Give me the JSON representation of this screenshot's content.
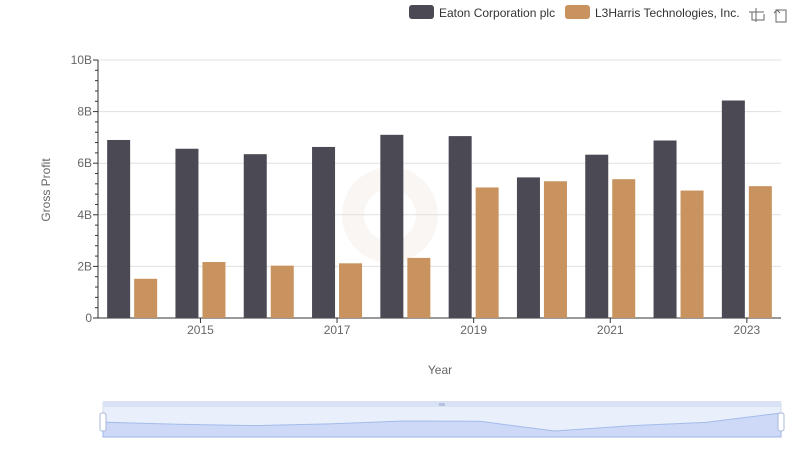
{
  "toolbar": {
    "icons": [
      "zoom-icon",
      "restore-icon"
    ]
  },
  "chart_data": {
    "type": "bar",
    "title": "",
    "xlabel": "Year",
    "ylabel": "Gross Profit",
    "categories": [
      "2014",
      "2015",
      "2016",
      "2017",
      "2018",
      "2019",
      "2020",
      "2021",
      "2022",
      "2023"
    ],
    "x_tick_labels": [
      "2015",
      "2017",
      "2019",
      "2021",
      "2023"
    ],
    "y_tick_labels": [
      "0",
      "2B",
      "4B",
      "6B",
      "8B",
      "10B"
    ],
    "ylim": [
      0,
      10000000000
    ],
    "y_ticks": [
      0,
      2000000000,
      4000000000,
      6000000000,
      8000000000,
      10000000000
    ],
    "grid": true,
    "legend_position": "top-right",
    "series": [
      {
        "name": "Eaton Corporation plc",
        "color": "#4a4954",
        "values": [
          6900000000,
          6560000000,
          6350000000,
          6630000000,
          7100000000,
          7050000000,
          5450000000,
          6330000000,
          6880000000,
          8430000000
        ]
      },
      {
        "name": "L3Harris Technologies, Inc.",
        "color": "#c8935f",
        "values": [
          1520000000,
          2170000000,
          2030000000,
          2120000000,
          2330000000,
          5060000000,
          5300000000,
          5380000000,
          4940000000,
          5110000000
        ]
      }
    ]
  }
}
